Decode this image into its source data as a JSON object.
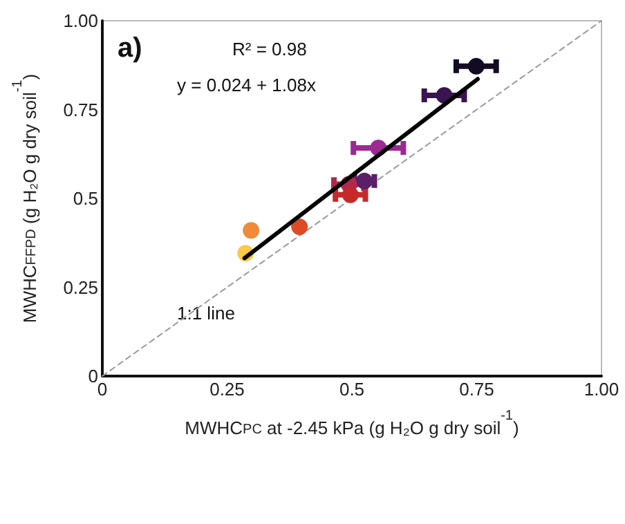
{
  "chart_data": {
    "type": "scatter",
    "xlabel": "MWHC$_{PC}$ at -2.45 kPa (g H₂O g dry soil$^{-1}$)",
    "ylabel": "MWHC$_{FFPD}$ (g H₂O g dry soil$^{-1}$)",
    "annotations": [
      "a)",
      "R² = 0.98",
      "y = 0.024 + 1.08x",
      "1:1 line"
    ],
    "xlim": [
      0,
      1
    ],
    "ylim": [
      0,
      1
    ],
    "xticks": [
      0,
      0.25,
      0.5,
      {
        "value": 0.75,
        "label": "0.75"
      },
      {
        "value": 1,
        "label": "1.00"
      }
    ],
    "yticks": [
      0,
      0.25,
      0.5,
      {
        "value": 0.75,
        "label": "0.75"
      },
      {
        "value": 1,
        "label": "1.00"
      }
    ],
    "grid": false,
    "series": [
      {
        "marker": "circle",
        "x": [
          0.749,
          0.685,
          0.553,
          0.525,
          0.494,
          0.497,
          0.395,
          0.298,
          0.287
        ],
        "values": [
          0.872,
          0.79,
          0.642,
          0.549,
          0.54,
          0.51,
          0.42,
          0.41,
          0.346
        ],
        "xerrors": [
          0.04,
          0.04,
          0.05,
          0.02,
          0.03,
          0.03,
          null,
          null,
          null
        ],
        "colors": [
          "#120b22",
          "#3a1450",
          "#9b2a92",
          "#5a1f66",
          "#b0284e",
          "#c42a2a",
          "#dc4a28",
          "#ef8a38",
          "#fbc94a"
        ]
      },
      {
        "type": "line",
        "color": "#000000",
        "line_style": "solid",
        "x": [
          0.285,
          0.752
        ],
        "values": [
          0.332,
          0.836
        ]
      },
      {
        "type": "line",
        "color": "#9a9a9a",
        "line_style": "dashed",
        "x": [
          0,
          1
        ],
        "values": [
          0,
          1
        ]
      }
    ]
  }
}
